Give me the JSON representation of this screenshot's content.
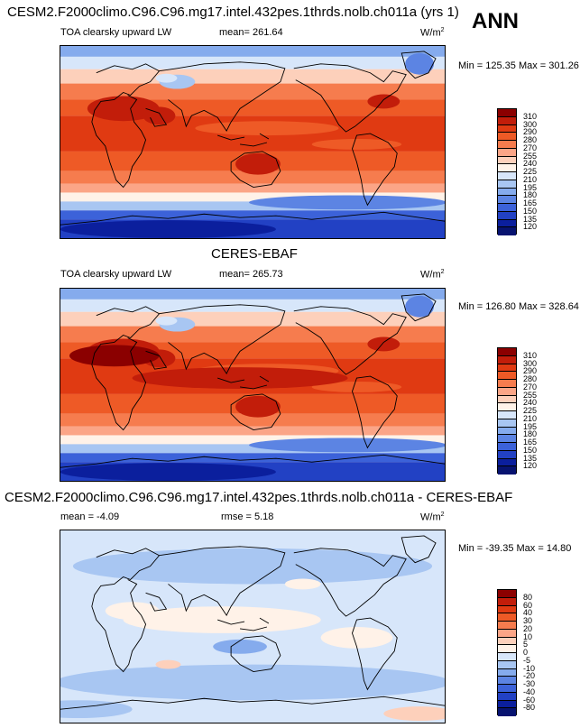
{
  "season": "ANN",
  "chart_data": [
    {
      "type": "heatmap",
      "title": "CESM2.F2000climo.C96.C96.mg17.intel.432pes.1thrds.nolb.ch011a (yrs 1)",
      "variable": "TOA clearsky upward LW",
      "units": "W/m",
      "units_sup": "2",
      "stats": "mean= 261.64",
      "minmax": "Min = 125.35 Max = 301.26",
      "levels": [
        "310",
        "300",
        "290",
        "280",
        "270",
        "255",
        "240",
        "225",
        "210",
        "195",
        "180",
        "165",
        "150",
        "135",
        "120"
      ],
      "colors": [
        "#8b0000",
        "#c21d0a",
        "#e03a12",
        "#ee5a26",
        "#f67c4e",
        "#fba587",
        "#fdd0bb",
        "#fff2e8",
        "#d7e6fa",
        "#a8c6f2",
        "#85abed",
        "#5c84e3",
        "#3c62d9",
        "#2241c4",
        "#0b1f9d",
        "#071370"
      ]
    },
    {
      "type": "heatmap",
      "title": "CERES-EBAF",
      "variable": "TOA clearsky upward LW",
      "units": "W/m",
      "units_sup": "2",
      "stats": "mean= 265.73",
      "minmax": "Min = 126.80 Max = 328.64",
      "levels": [
        "310",
        "300",
        "290",
        "280",
        "270",
        "255",
        "240",
        "225",
        "210",
        "195",
        "180",
        "165",
        "150",
        "135",
        "120"
      ],
      "colors": [
        "#8b0000",
        "#c21d0a",
        "#e03a12",
        "#ee5a26",
        "#f67c4e",
        "#fba587",
        "#fdd0bb",
        "#fff2e8",
        "#d7e6fa",
        "#a8c6f2",
        "#85abed",
        "#5c84e3",
        "#3c62d9",
        "#2241c4",
        "#0b1f9d",
        "#071370"
      ]
    },
    {
      "type": "heatmap",
      "title": "CESM2.F2000climo.C96.C96.mg17.intel.432pes.1thrds.nolb.ch011a - CERES-EBAF",
      "units": "W/m",
      "units_sup": "2",
      "stats": "mean =  -4.09",
      "rmse": "rmse =   5.18",
      "minmax": "Min = -39.35 Max =  14.80",
      "levels": [
        "80",
        "60",
        "40",
        "30",
        "20",
        "10",
        "5",
        "0",
        "-5",
        "-10",
        "-20",
        "-30",
        "-40",
        "-60",
        "-80"
      ],
      "colors": [
        "#8b0000",
        "#c21d0a",
        "#e03a12",
        "#ee5a26",
        "#f67c4e",
        "#fba587",
        "#fdd0bb",
        "#fff2e8",
        "#d7e6fa",
        "#a8c6f2",
        "#85abed",
        "#5c84e3",
        "#3c62d9",
        "#2241c4",
        "#0b1f9d",
        "#071370"
      ]
    }
  ]
}
